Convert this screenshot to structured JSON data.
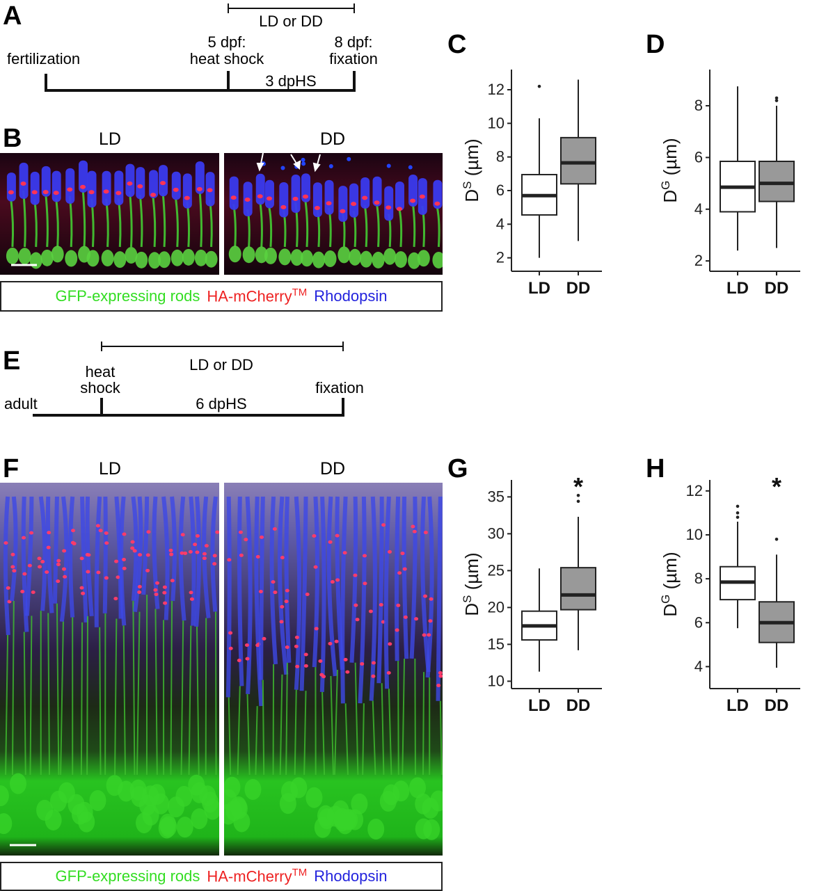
{
  "panels": {
    "A": "A",
    "B": "B",
    "C": "C",
    "D": "D",
    "E": "E",
    "F": "F",
    "G": "G",
    "H": "H"
  },
  "timeline_A": {
    "range_label": "LD or DD",
    "start_label": "fertilization",
    "hs_label_1": "5 dpf:",
    "hs_label_2": "heat shock",
    "fix_label_1": "8 dpf:",
    "fix_label_2": "fixation",
    "interval_label": "3 dpHS"
  },
  "timeline_E": {
    "range_label": "LD or DD",
    "start_label": "adult",
    "hs_label_1": "heat",
    "hs_label_2": "shock",
    "fix_label": "fixation",
    "interval_label": "6 dpHS"
  },
  "images": {
    "cond_left": "LD",
    "cond_right": "DD"
  },
  "legend": {
    "green": "GFP-expressing rods",
    "red_main": "HA-mCherry",
    "red_sup": "TM",
    "blue": "Rhodopsin"
  },
  "colors": {
    "gfp": "#33dd22",
    "mcherry": "#ee2222",
    "rhodopsin": "#2222dd",
    "box_ld": "#ffffff",
    "box_dd": "#999999"
  },
  "chart_data": [
    {
      "panel": "C",
      "type": "box",
      "ylabel_base": "D",
      "ylabel_sup": "S",
      "ylabel_unit": " (µm)",
      "categories": [
        "LD",
        "DD"
      ],
      "yticks": [
        2,
        4,
        6,
        8,
        10,
        12
      ],
      "ylim": [
        1.2,
        13.2
      ],
      "boxes": [
        {
          "name": "LD",
          "min": 2.0,
          "q1": 4.55,
          "median": 5.7,
          "q3": 6.95,
          "max": 10.3,
          "outliers": [
            12.2
          ],
          "fill": "#ffffff"
        },
        {
          "name": "DD",
          "min": 3.0,
          "q1": 6.4,
          "median": 7.65,
          "q3": 9.15,
          "max": 12.6,
          "outliers": [],
          "fill": "#999999"
        }
      ],
      "significance": ""
    },
    {
      "panel": "D",
      "type": "box",
      "ylabel_base": "D",
      "ylabel_sup": "G",
      "ylabel_unit": " (µm)",
      "categories": [
        "LD",
        "DD"
      ],
      "yticks": [
        2,
        4,
        6,
        8
      ],
      "ylim": [
        1.6,
        9.4
      ],
      "boxes": [
        {
          "name": "LD",
          "min": 2.4,
          "q1": 3.9,
          "median": 4.85,
          "q3": 5.85,
          "max": 8.75,
          "outliers": [],
          "fill": "#ffffff"
        },
        {
          "name": "DD",
          "min": 2.5,
          "q1": 4.3,
          "median": 5.0,
          "q3": 5.85,
          "max": 8.0,
          "outliers": [
            8.2,
            8.3
          ],
          "fill": "#999999"
        }
      ],
      "significance": ""
    },
    {
      "panel": "G",
      "type": "box",
      "ylabel_base": "D",
      "ylabel_sup": "S",
      "ylabel_unit": " (µm)",
      "categories": [
        "LD",
        "DD"
      ],
      "yticks": [
        10,
        15,
        20,
        25,
        30,
        35
      ],
      "ylim": [
        9.0,
        37.3
      ],
      "boxes": [
        {
          "name": "LD",
          "min": 11.3,
          "q1": 15.6,
          "median": 17.5,
          "q3": 19.5,
          "max": 25.3,
          "outliers": [],
          "fill": "#ffffff"
        },
        {
          "name": "DD",
          "min": 14.2,
          "q1": 19.7,
          "median": 21.7,
          "q3": 25.4,
          "max": 32.3,
          "outliers": [
            34.4,
            35.2
          ],
          "fill": "#999999"
        }
      ],
      "significance": "*"
    },
    {
      "panel": "H",
      "type": "box",
      "ylabel_base": "D",
      "ylabel_sup": "G",
      "ylabel_unit": " (µm)",
      "categories": [
        "LD",
        "DD"
      ],
      "yticks": [
        4,
        6,
        8,
        10,
        12
      ],
      "ylim": [
        3.0,
        12.5
      ],
      "boxes": [
        {
          "name": "LD",
          "min": 5.75,
          "q1": 7.05,
          "median": 7.85,
          "q3": 8.55,
          "max": 10.6,
          "outliers": [
            10.8,
            11.0,
            11.3
          ],
          "fill": "#ffffff"
        },
        {
          "name": "DD",
          "min": 3.95,
          "q1": 5.1,
          "median": 6.0,
          "q3": 6.95,
          "max": 9.1,
          "outliers": [
            9.8
          ],
          "fill": "#999999"
        }
      ],
      "significance": "*"
    }
  ]
}
